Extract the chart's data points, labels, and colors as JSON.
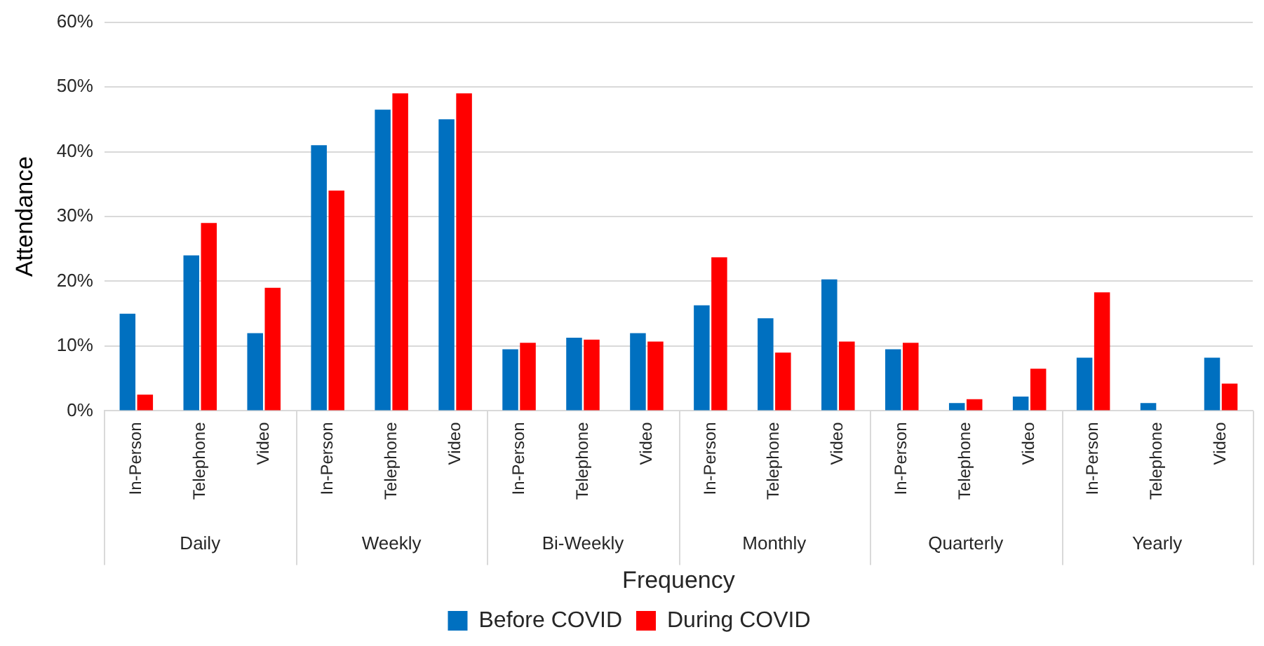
{
  "chart_data": {
    "type": "bar",
    "xlabel": "Frequency",
    "ylabel": "Attendance",
    "categories": [
      "In-Person",
      "Telephone",
      "Video",
      "In-Person",
      "Telephone",
      "Video",
      "In-Person",
      "Telephone",
      "Video",
      "In-Person",
      "Telephone",
      "Video",
      "In-Person",
      "Telephone",
      "Video",
      "In-Person",
      "Telephone",
      "Video"
    ],
    "annotations": [
      "Daily",
      "Weekly",
      "Bi-Weekly",
      "Monthly",
      "Quarterly",
      "Yearly"
    ],
    "series": [
      {
        "name": "Before COVID",
        "color": "#0070c0",
        "values": [
          15,
          24,
          12,
          41,
          46.5,
          45,
          9.5,
          11.3,
          12,
          16.3,
          14.3,
          20.3,
          9.5,
          1.2,
          2.2,
          8.2,
          1.2,
          8.2
        ]
      },
      {
        "name": "During COVID",
        "color": "#ff0000",
        "values": [
          2.5,
          29,
          19,
          34,
          49,
          49,
          10.5,
          11,
          10.7,
          23.7,
          9,
          10.7,
          10.5,
          1.8,
          6.5,
          18.3,
          0,
          4.2
        ]
      }
    ],
    "ylim": [
      0,
      60
    ],
    "yticks": [
      {
        "value": 0,
        "label": "0%"
      },
      {
        "value": 10,
        "label": "10%"
      },
      {
        "value": 20,
        "label": "20%"
      },
      {
        "value": 30,
        "label": "30%"
      },
      {
        "value": 40,
        "label": "40%"
      },
      {
        "value": 50,
        "label": "50%"
      },
      {
        "value": 60,
        "label": "60%"
      }
    ],
    "grid": "y",
    "legend": "bottom"
  }
}
